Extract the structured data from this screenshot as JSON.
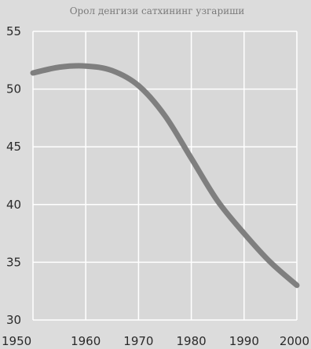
{
  "chart_data": {
    "type": "line",
    "title": "Орол денгизи сатхининг узгариши",
    "xlabel": "",
    "ylabel": "",
    "x": [
      1950,
      1955,
      1960,
      1965,
      1970,
      1975,
      1980,
      1985,
      1990,
      1995,
      2000
    ],
    "series": [
      {
        "values": [
          51.4,
          51.9,
          52.0,
          51.6,
          50.3,
          47.7,
          44.0,
          40.3,
          37.5,
          35.0,
          33.0
        ]
      }
    ],
    "xticks": [
      "1950",
      "1960",
      "1970",
      "1980",
      "1990",
      "2000"
    ],
    "yticks": [
      "30",
      "35",
      "40",
      "45",
      "50",
      "55"
    ],
    "xlim": [
      1950,
      2000
    ],
    "ylim": [
      30,
      55
    ],
    "grid": true,
    "colors": {
      "line": "#7f7f7f",
      "grid": "#ffffff",
      "background": "#d8d8d8"
    }
  }
}
